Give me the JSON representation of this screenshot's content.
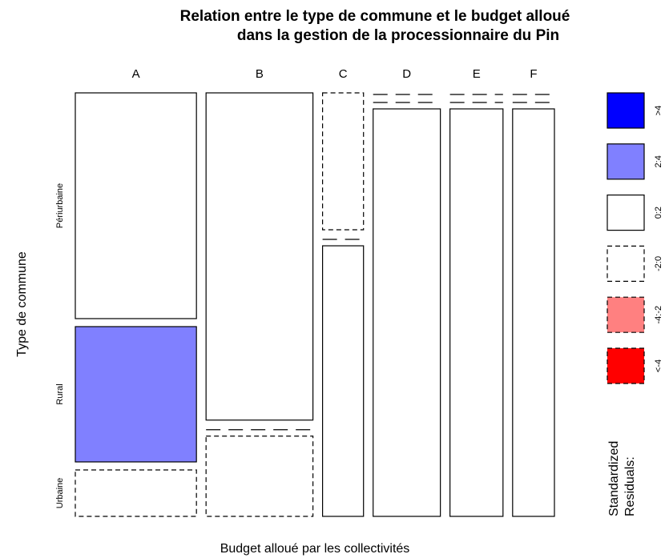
{
  "chart_data": {
    "type": "mosaic",
    "title": [
      "Relation entre le type de commune et le budget alloué",
      "dans la gestion de la processionnaire du Pin"
    ],
    "x_label": "Budget alloué par les collectivités",
    "y_label": "Type de commune",
    "categories": [
      "A",
      "B",
      "C",
      "D",
      "E",
      "F"
    ],
    "column_shares": [
      28.1,
      24.8,
      9.5,
      15.6,
      12.3,
      9.7
    ],
    "series": [
      {
        "name": "Périurbaine",
        "values": [
          55.4,
          80.3,
          33.6,
          0,
          0,
          0
        ],
        "residual_class": [
          2,
          2,
          3,
          3,
          3,
          3
        ]
      },
      {
        "name": "Rural",
        "values": [
          33.2,
          0,
          0,
          0,
          0,
          0
        ],
        "residual_class": [
          1,
          3,
          3,
          3,
          3,
          3
        ]
      },
      {
        "name": "Urbaine",
        "values": [
          11.4,
          19.7,
          66.4,
          100,
          100,
          100
        ],
        "residual_class": [
          3,
          3,
          2,
          2,
          2,
          2
        ]
      }
    ],
    "legend": {
      "title": [
        "Standardized",
        "Residuals:"
      ],
      "labels": [
        ">4",
        "2:4",
        "0:2",
        "-2:0",
        "-4:-2",
        "<-4"
      ],
      "colors": [
        "#0000ff",
        "#8080ff",
        "#ffffff",
        "#ffffff",
        "#ff8080",
        "#ff0000"
      ],
      "dashed": [
        false,
        false,
        false,
        true,
        true,
        true
      ]
    }
  }
}
